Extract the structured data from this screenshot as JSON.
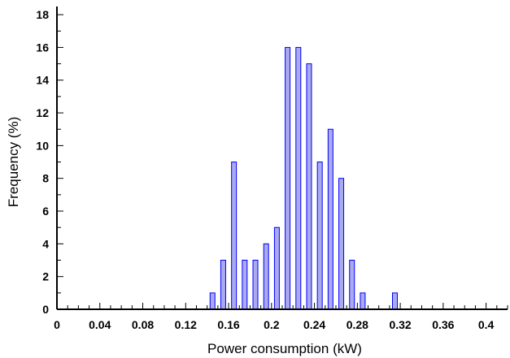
{
  "chart_data": {
    "type": "bar",
    "title": "",
    "xlabel": "Power consumption (kW)",
    "ylabel": "Frequency (%)",
    "xlim": [
      0,
      0.42
    ],
    "ylim": [
      0,
      18.5
    ],
    "x_ticks": [
      "0",
      "0.04",
      "0.08",
      "0.12",
      "0.16",
      "0.2",
      "0.24",
      "0.28",
      "0.32",
      "0.36",
      "0.4"
    ],
    "x_tick_values": [
      0,
      0.04,
      0.08,
      0.12,
      0.16,
      0.2,
      0.24,
      0.28,
      0.32,
      0.36,
      0.4
    ],
    "y_ticks": [
      "0",
      "2",
      "4",
      "6",
      "8",
      "10",
      "12",
      "14",
      "16",
      "18"
    ],
    "y_tick_values": [
      0,
      2,
      4,
      6,
      8,
      10,
      12,
      14,
      16,
      18
    ],
    "x": [
      0.145,
      0.155,
      0.165,
      0.175,
      0.185,
      0.195,
      0.205,
      0.215,
      0.225,
      0.235,
      0.245,
      0.255,
      0.265,
      0.275,
      0.285,
      0.315
    ],
    "values": [
      1,
      3,
      9,
      3,
      3,
      4,
      5,
      16,
      16,
      15,
      9,
      11,
      8,
      3,
      1,
      1
    ],
    "bar_color": "#aaaaee",
    "bar_edge_color": "#0000ff",
    "grid": false
  }
}
